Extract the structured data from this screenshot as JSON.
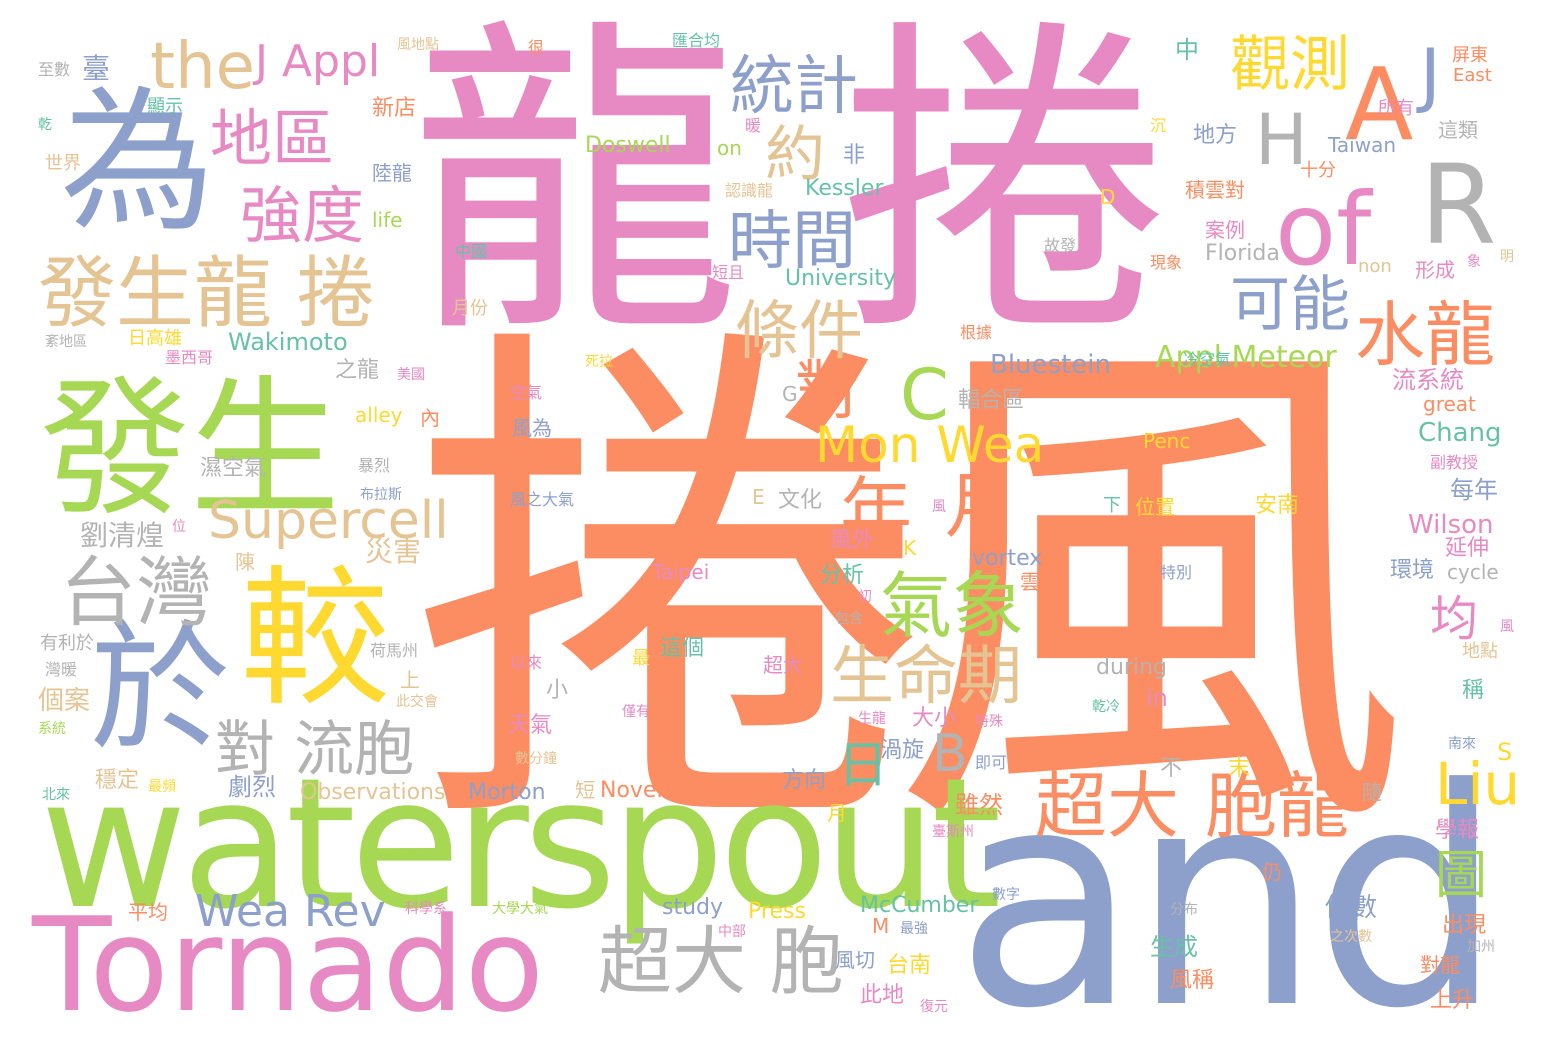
{
  "palette": {
    "orange": "#fc8d62",
    "pink": "#e78ac3",
    "green": "#a6d854",
    "blue": "#8da0cb",
    "yellow": "#ffd92f",
    "tan": "#e5c494",
    "gray": "#b3b3b3",
    "teal": "#66c2a5"
  },
  "words": [
    {
      "text": "捲風",
      "color": "#fc8d62"
    },
    {
      "text": "龍",
      "color": "#e78ac3"
    },
    {
      "text": "捲",
      "color": "#e78ac3"
    },
    {
      "text": "and",
      "color": "#8da0cb"
    },
    {
      "text": "waterspout",
      "color": "#a6d854"
    },
    {
      "text": "Tornado",
      "color": "#e78ac3"
    },
    {
      "text": "發生",
      "color": "#a6d854"
    },
    {
      "text": "為",
      "color": "#8da0cb"
    },
    {
      "text": "較",
      "color": "#ffd92f"
    },
    {
      "text": "於",
      "color": "#8da0cb"
    },
    {
      "text": "發生龍 捲",
      "color": "#e5c494"
    },
    {
      "text": "of",
      "color": "#e78ac3"
    },
    {
      "text": "R",
      "color": "#b3b3b3"
    },
    {
      "text": "A",
      "color": "#fc8d62"
    },
    {
      "text": "the",
      "color": "#e5c494"
    },
    {
      "text": "地區",
      "color": "#e78ac3"
    },
    {
      "text": "強度",
      "color": "#e78ac3"
    },
    {
      "text": "台灣",
      "color": "#b3b3b3"
    },
    {
      "text": "Supercell",
      "color": "#e5c494"
    },
    {
      "text": "統計",
      "color": "#8da0cb"
    },
    {
      "text": "時間",
      "color": "#8da0cb"
    },
    {
      "text": "條件",
      "color": "#e5c494"
    },
    {
      "text": "約",
      "color": "#e5c494"
    },
    {
      "text": "觀測",
      "color": "#ffd92f"
    },
    {
      "text": "可能",
      "color": "#8da0cb"
    },
    {
      "text": "水龍",
      "color": "#fc8d62"
    },
    {
      "text": "H",
      "color": "#b3b3b3"
    },
    {
      "text": "J",
      "color": "#8da0cb"
    },
    {
      "text": "C",
      "color": "#a6d854"
    },
    {
      "text": "對",
      "color": "#fc8d62"
    },
    {
      "text": "Mon Wea",
      "color": "#ffd92f"
    },
    {
      "text": "年",
      "color": "#fc8d62"
    },
    {
      "text": "月",
      "color": "#fc8d62"
    },
    {
      "text": "氣象",
      "color": "#a6d854"
    },
    {
      "text": "生命期",
      "color": "#e5c494"
    },
    {
      "text": "對 流胞",
      "color": "#b3b3b3"
    },
    {
      "text": "超大 胞",
      "color": "#b3b3b3"
    },
    {
      "text": "Wea Rev",
      "color": "#8da0cb"
    },
    {
      "text": "超大",
      "color": "#fc8d62"
    },
    {
      "text": "胞龍",
      "color": "#fc8d62"
    },
    {
      "text": "Liu",
      "color": "#ffd92f"
    },
    {
      "text": "B",
      "color": "#b3b3b3"
    },
    {
      "text": "日",
      "color": "#66c2a5"
    },
    {
      "text": "J Appl",
      "color": "#e78ac3"
    },
    {
      "text": "Appl Meteor",
      "color": "#a6d854"
    },
    {
      "text": "均",
      "color": "#e78ac3"
    },
    {
      "text": "圖",
      "color": "#a6d854"
    },
    {
      "text": "Bluestein",
      "color": "#8da0cb"
    },
    {
      "text": "Wakimoto",
      "color": "#66c2a5"
    },
    {
      "text": "University",
      "color": "#66c2a5"
    },
    {
      "text": "Kessler",
      "color": "#66c2a5"
    },
    {
      "text": "Doswell",
      "color": "#a6d854"
    },
    {
      "text": "Taiwan",
      "color": "#8da0cb"
    },
    {
      "text": "Florida",
      "color": "#b3b3b3"
    },
    {
      "text": "Chang",
      "color": "#66c2a5"
    },
    {
      "text": "Wilson",
      "color": "#e78ac3"
    },
    {
      "text": "cycle",
      "color": "#b3b3b3"
    },
    {
      "text": "vortex",
      "color": "#8da0cb"
    },
    {
      "text": "Taipei",
      "color": "#e78ac3"
    },
    {
      "text": "during",
      "color": "#b3b3b3"
    },
    {
      "text": "in",
      "color": "#e78ac3"
    },
    {
      "text": "Observations",
      "color": "#e5c494"
    },
    {
      "text": "Morton",
      "color": "#8da0cb"
    },
    {
      "text": "November",
      "color": "#fc8d62"
    },
    {
      "text": "study",
      "color": "#8da0cb"
    },
    {
      "text": "Press",
      "color": "#ffd92f"
    },
    {
      "text": "McCumber",
      "color": "#66c2a5"
    },
    {
      "text": "great",
      "color": "#fc8d62"
    },
    {
      "text": "Penc",
      "color": "#ffd92f"
    },
    {
      "text": "alley",
      "color": "#ffd92f"
    },
    {
      "text": "life",
      "color": "#a6d854"
    },
    {
      "text": "non",
      "color": "#e5c494"
    },
    {
      "text": "on",
      "color": "#a6d854"
    },
    {
      "text": "East",
      "color": "#fc8d62"
    },
    {
      "text": "D",
      "color": "#ffd92f"
    },
    {
      "text": "G",
      "color": "#b3b3b3"
    },
    {
      "text": "E",
      "color": "#e5c494"
    },
    {
      "text": "K",
      "color": "#ffd92f"
    },
    {
      "text": "M",
      "color": "#fc8d62"
    },
    {
      "text": "S",
      "color": "#ffd92f"
    },
    {
      "text": "劉清煌",
      "color": "#b3b3b3"
    },
    {
      "text": "災害",
      "color": "#e5c494"
    },
    {
      "text": "流系統",
      "color": "#e78ac3"
    },
    {
      "text": "輻合區",
      "color": "#b3b3b3"
    },
    {
      "text": "每年",
      "color": "#8da0cb"
    },
    {
      "text": "延伸",
      "color": "#e78ac3"
    },
    {
      "text": "環境",
      "color": "#8da0cb"
    },
    {
      "text": "分析",
      "color": "#66c2a5"
    },
    {
      "text": "文化",
      "color": "#b3b3b3"
    },
    {
      "text": "風外",
      "color": "#e78ac3"
    },
    {
      "text": "安南",
      "color": "#ffd92f"
    },
    {
      "text": "位置",
      "color": "#ffd92f"
    },
    {
      "text": "這個",
      "color": "#66c2a5"
    },
    {
      "text": "超大",
      "color": "#e78ac3"
    },
    {
      "text": "渦旋",
      "color": "#8da0cb"
    },
    {
      "text": "大小",
      "color": "#e78ac3"
    },
    {
      "text": "方向",
      "color": "#8da0cb"
    },
    {
      "text": "劇烈",
      "color": "#8da0cb"
    },
    {
      "text": "天氣",
      "color": "#e78ac3"
    },
    {
      "text": "穩定",
      "color": "#e5c494"
    },
    {
      "text": "個案",
      "color": "#e5c494"
    },
    {
      "text": "濕空氣",
      "color": "#b3b3b3"
    },
    {
      "text": "之龍",
      "color": "#b3b3b3"
    },
    {
      "text": "風為",
      "color": "#8da0cb"
    },
    {
      "text": "雖然",
      "color": "#fc8d62"
    },
    {
      "text": "台南",
      "color": "#ffd92f"
    },
    {
      "text": "此地",
      "color": "#e78ac3"
    },
    {
      "text": "風切",
      "color": "#8da0cb"
    },
    {
      "text": "生成",
      "color": "#66c2a5"
    },
    {
      "text": "風稱",
      "color": "#fc8d62"
    },
    {
      "text": "個數",
      "color": "#8da0cb"
    },
    {
      "text": "出現",
      "color": "#fc8d62"
    },
    {
      "text": "學報",
      "color": "#e78ac3"
    },
    {
      "text": "上升",
      "color": "#fc8d62"
    },
    {
      "text": "對龍",
      "color": "#fc8d62"
    },
    {
      "text": "平均",
      "color": "#fc8d62"
    },
    {
      "text": "新店",
      "color": "#fc8d62"
    },
    {
      "text": "陸龍",
      "color": "#8da0cb"
    },
    {
      "text": "地方",
      "color": "#8da0cb"
    },
    {
      "text": "積雲對",
      "color": "#fc8d62"
    },
    {
      "text": "案例",
      "color": "#e78ac3"
    },
    {
      "text": "形成",
      "color": "#e78ac3"
    },
    {
      "text": "所有",
      "color": "#e78ac3"
    },
    {
      "text": "這類",
      "color": "#b3b3b3"
    },
    {
      "text": "十分",
      "color": "#fc8d62"
    },
    {
      "text": "屏東",
      "color": "#fc8d62"
    },
    {
      "text": "臺",
      "color": "#8da0cb"
    },
    {
      "text": "中",
      "color": "#66c2a5"
    },
    {
      "text": "非",
      "color": "#8da0cb"
    },
    {
      "text": "內",
      "color": "#fc8d62"
    },
    {
      "text": "小",
      "color": "#b3b3b3"
    },
    {
      "text": "稱",
      "color": "#66c2a5"
    },
    {
      "text": "不",
      "color": "#b3b3b3"
    },
    {
      "text": "末",
      "color": "#ffd92f"
    },
    {
      "text": "隨",
      "color": "#b3b3b3"
    },
    {
      "text": "仍",
      "color": "#fc8d62"
    },
    {
      "text": "上",
      "color": "#e5c494"
    },
    {
      "text": "短",
      "color": "#e5c494"
    },
    {
      "text": "月",
      "color": "#ffd92f"
    },
    {
      "text": "陳",
      "color": "#e5c494"
    },
    {
      "text": "雲",
      "color": "#fc8d62"
    },
    {
      "text": "至數",
      "color": "#b3b3b3"
    },
    {
      "text": "顯示",
      "color": "#66c2a5"
    },
    {
      "text": "世界",
      "color": "#e5c494"
    },
    {
      "text": "風地點",
      "color": "#e5c494"
    },
    {
      "text": "很",
      "color": "#fc8d62"
    },
    {
      "text": "匯合均",
      "color": "#66c2a5"
    },
    {
      "text": "認識龍",
      "color": "#e5c494"
    },
    {
      "text": "中國",
      "color": "#66c2a5"
    },
    {
      "text": "短且",
      "color": "#e78ac3"
    },
    {
      "text": "故發",
      "color": "#b3b3b3"
    },
    {
      "text": "現象",
      "color": "#fc8d62"
    },
    {
      "text": "月份",
      "color": "#e5c494"
    },
    {
      "text": "日高雄",
      "color": "#ffd92f"
    },
    {
      "text": "冷空氣",
      "color": "#66c2a5"
    },
    {
      "text": "根據",
      "color": "#fc8d62"
    },
    {
      "text": "墨西哥",
      "color": "#e78ac3"
    },
    {
      "text": "美國",
      "color": "#e78ac3"
    },
    {
      "text": "暴烈",
      "color": "#b3b3b3"
    },
    {
      "text": "布拉斯",
      "color": "#8da0cb"
    },
    {
      "text": "風之大氣",
      "color": "#8da0cb"
    },
    {
      "text": "副教授",
      "color": "#e78ac3"
    },
    {
      "text": "特別",
      "color": "#8da0cb"
    },
    {
      "text": "包含",
      "color": "#b3b3b3"
    },
    {
      "text": "荷馬州",
      "color": "#b3b3b3"
    },
    {
      "text": "有利於",
      "color": "#b3b3b3"
    },
    {
      "text": "灣暖",
      "color": "#b3b3b3"
    },
    {
      "text": "以來",
      "color": "#e78ac3"
    },
    {
      "text": "此交會",
      "color": "#e5c494"
    },
    {
      "text": "僅有",
      "color": "#e78ac3"
    },
    {
      "text": "生龍",
      "color": "#e78ac3"
    },
    {
      "text": "特殊",
      "color": "#e78ac3"
    },
    {
      "text": "即可",
      "color": "#8da0cb"
    },
    {
      "text": "乾冷",
      "color": "#66c2a5"
    },
    {
      "text": "最頻",
      "color": "#ffd92f"
    },
    {
      "text": "數分鐘",
      "color": "#e5c494"
    },
    {
      "text": "北來",
      "color": "#66c2a5"
    },
    {
      "text": "南來",
      "color": "#8da0cb"
    },
    {
      "text": "系統",
      "color": "#a6d854"
    },
    {
      "text": "科學系",
      "color": "#e78ac3"
    },
    {
      "text": "大學大氣",
      "color": "#a6d854"
    },
    {
      "text": "中部",
      "color": "#e78ac3"
    },
    {
      "text": "最強",
      "color": "#8da0cb"
    },
    {
      "text": "數字",
      "color": "#8da0cb"
    },
    {
      "text": "分布",
      "color": "#b3b3b3"
    },
    {
      "text": "之次數",
      "color": "#e5c494"
    },
    {
      "text": "加州",
      "color": "#b3b3b3"
    },
    {
      "text": "復元",
      "color": "#e78ac3"
    },
    {
      "text": "紊地區",
      "color": "#b3b3b3"
    },
    {
      "text": "死拉",
      "color": "#ffd92f"
    },
    {
      "text": "空氣",
      "color": "#e78ac3"
    },
    {
      "text": "地點",
      "color": "#e5c494"
    },
    {
      "text": "風",
      "color": "#e78ac3"
    },
    {
      "text": "最",
      "color": "#ffd92f"
    },
    {
      "text": "下",
      "color": "#66c2a5"
    },
    {
      "text": "位",
      "color": "#e78ac3"
    },
    {
      "text": "初",
      "color": "#e78ac3"
    },
    {
      "text": "乾",
      "color": "#66c2a5"
    },
    {
      "text": "沉",
      "color": "#ffd92f"
    },
    {
      "text": "暖",
      "color": "#e78ac3"
    },
    {
      "text": "風",
      "color": "#e78ac3"
    },
    {
      "text": "明",
      "color": "#e5c494"
    },
    {
      "text": "臺斯州",
      "color": "#e78ac3"
    },
    {
      "text": "象",
      "color": "#e78ac3"
    }
  ]
}
